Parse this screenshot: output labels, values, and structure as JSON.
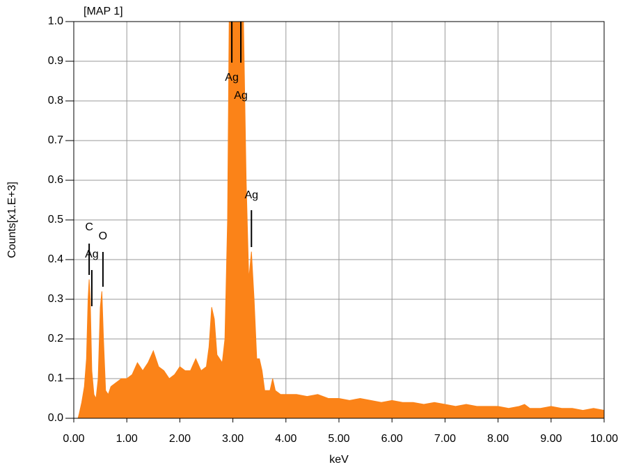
{
  "chart_data": {
    "type": "area",
    "title": "[MAP 1]",
    "x_label": "keV",
    "y_label": "Counts[x1.E+3]",
    "color": "#fb8318",
    "grid": true,
    "x": [
      0.0,
      0.08,
      0.1,
      0.15,
      0.2,
      0.24,
      0.27,
      0.29,
      0.31,
      0.34,
      0.38,
      0.42,
      0.46,
      0.5,
      0.53,
      0.56,
      0.6,
      0.65,
      0.7,
      0.8,
      0.9,
      1.0,
      1.1,
      1.2,
      1.3,
      1.4,
      1.5,
      1.6,
      1.7,
      1.8,
      1.9,
      2.0,
      2.1,
      2.2,
      2.3,
      2.4,
      2.5,
      2.55,
      2.6,
      2.65,
      2.7,
      2.8,
      2.85,
      2.9,
      2.93,
      3.2,
      3.25,
      3.3,
      3.35,
      3.4,
      3.45,
      3.5,
      3.55,
      3.6,
      3.7,
      3.75,
      3.8,
      3.9,
      4.0,
      4.2,
      4.4,
      4.6,
      4.8,
      5.0,
      5.2,
      5.4,
      5.6,
      5.8,
      6.0,
      6.2,
      6.4,
      6.6,
      6.8,
      7.0,
      7.2,
      7.4,
      7.6,
      7.8,
      8.0,
      8.2,
      8.4,
      8.5,
      8.6,
      8.8,
      9.0,
      9.2,
      9.4,
      9.6,
      9.8,
      10.0
    ],
    "values": [
      0,
      0,
      0.01,
      0.04,
      0.08,
      0.15,
      0.3,
      0.35,
      0.3,
      0.12,
      0.06,
      0.05,
      0.1,
      0.28,
      0.32,
      0.2,
      0.07,
      0.06,
      0.08,
      0.09,
      0.1,
      0.1,
      0.11,
      0.14,
      0.12,
      0.14,
      0.17,
      0.13,
      0.12,
      0.1,
      0.11,
      0.13,
      0.12,
      0.12,
      0.15,
      0.12,
      0.13,
      0.18,
      0.28,
      0.25,
      0.16,
      0.14,
      0.2,
      0.5,
      1.0,
      1.0,
      0.6,
      0.35,
      0.42,
      0.3,
      0.15,
      0.15,
      0.12,
      0.07,
      0.07,
      0.1,
      0.07,
      0.06,
      0.06,
      0.06,
      0.055,
      0.06,
      0.05,
      0.05,
      0.045,
      0.05,
      0.045,
      0.04,
      0.045,
      0.04,
      0.04,
      0.035,
      0.04,
      0.035,
      0.03,
      0.035,
      0.03,
      0.03,
      0.03,
      0.025,
      0.03,
      0.035,
      0.025,
      0.025,
      0.03,
      0.025,
      0.025,
      0.02,
      0.025,
      0.02
    ],
    "xlim": [
      0,
      10
    ],
    "ylim": [
      0,
      1
    ],
    "xticks": [
      {
        "value": 0,
        "label": "0.00"
      },
      {
        "value": 1,
        "label": "1.00"
      },
      {
        "value": 2,
        "label": "2.00"
      },
      {
        "value": 3,
        "label": "3.00"
      },
      {
        "value": 4,
        "label": "4.00"
      },
      {
        "value": 5,
        "label": "5.00"
      },
      {
        "value": 6,
        "label": "6.00"
      },
      {
        "value": 7,
        "label": "7.00"
      },
      {
        "value": 8,
        "label": "8.00"
      },
      {
        "value": 9,
        "label": "9.00"
      },
      {
        "value": 10,
        "label": "10.00"
      }
    ],
    "yticks": [
      {
        "value": 0,
        "label": "0.0"
      },
      0.1,
      0.2,
      0.3,
      0.4,
      0.5,
      0.6,
      0.7,
      0.8,
      0.9,
      {
        "value": 1,
        "label": "1.0"
      }
    ],
    "annotations": [
      {
        "text": "C",
        "x": 0.29
      },
      {
        "text": "O",
        "x": 0.55
      },
      {
        "text": "Ag",
        "x": 0.34
      },
      {
        "text": "Ag",
        "x": 2.98
      },
      {
        "text": "Ag",
        "x": 3.15
      },
      {
        "text": "Ag",
        "x": 3.35
      }
    ]
  }
}
